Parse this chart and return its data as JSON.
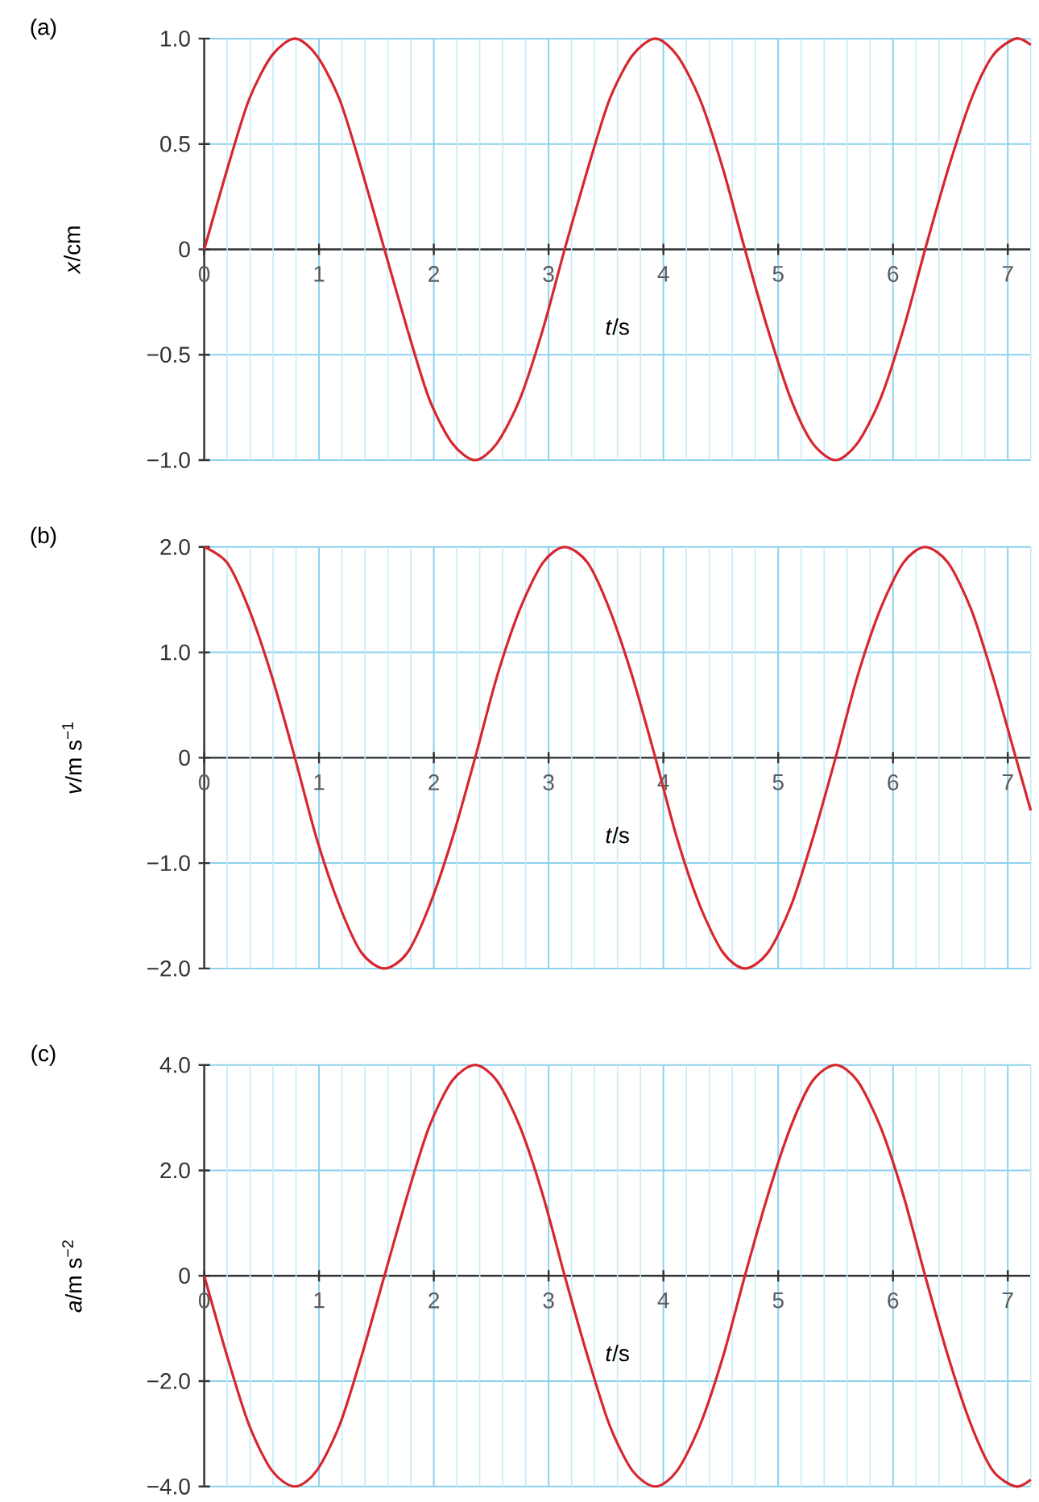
{
  "chart_data": [
    {
      "type": "line",
      "title": "(a)",
      "xlabel": "*t*/s",
      "ylabel": "*x*/cm",
      "xlim": [
        0,
        7.2
      ],
      "ylim": [
        -1.0,
        1.0
      ],
      "xticks": [
        0,
        {
          "value": 0.2,
          "label": null
        },
        {
          "value": 0.4,
          "label": null
        },
        {
          "value": 0.6,
          "label": null
        },
        {
          "value": 0.8,
          "label": null
        },
        1,
        {
          "value": 1.2,
          "label": null
        },
        {
          "value": 1.4,
          "label": null
        },
        {
          "value": 1.6,
          "label": null
        },
        {
          "value": 1.8,
          "label": null
        },
        2,
        {
          "value": 2.2,
          "label": null
        },
        {
          "value": 2.4,
          "label": null
        },
        {
          "value": 2.6,
          "label": null
        },
        {
          "value": 2.8,
          "label": null
        },
        3,
        {
          "value": 3.2,
          "label": null
        },
        {
          "value": 3.4,
          "label": null
        },
        {
          "value": 3.6,
          "label": null
        },
        {
          "value": 3.8,
          "label": null
        },
        4,
        {
          "value": 4.2,
          "label": null
        },
        {
          "value": 4.4,
          "label": null
        },
        {
          "value": 4.6,
          "label": null
        },
        {
          "value": 4.8,
          "label": null
        },
        5,
        {
          "value": 5.2,
          "label": null
        },
        {
          "value": 5.4,
          "label": null
        },
        {
          "value": 5.6,
          "label": null
        },
        {
          "value": 5.8,
          "label": null
        },
        6,
        {
          "value": 6.2,
          "label": null
        },
        {
          "value": 6.4,
          "label": null
        },
        {
          "value": 6.6,
          "label": null
        },
        {
          "value": 6.8,
          "label": null
        },
        7,
        {
          "value": 7.2,
          "label": null
        }
      ],
      "yticks": [
        {
          "value": 1.0,
          "label": "1.0"
        },
        {
          "value": 0.5,
          "label": "0.5"
        },
        {
          "value": 0,
          "label": "0"
        },
        {
          "value": -0.5,
          "label": "−0.5"
        },
        {
          "value": -1.0,
          "label": "−1.0"
        }
      ],
      "grid": true,
      "marker": "none",
      "line_style": "solid",
      "x": [
        0,
        0.2,
        0.39,
        0.59,
        0.79,
        0.98,
        1.18,
        1.37,
        1.57,
        1.77,
        1.96,
        2.16,
        2.36,
        2.55,
        2.75,
        2.95,
        3.14,
        3.34,
        3.53,
        3.73,
        3.93,
        4.12,
        4.32,
        4.52,
        4.71,
        4.91,
        5.11,
        5.3,
        5.5,
        5.69,
        5.89,
        6.09,
        6.28,
        6.48,
        6.68,
        6.87,
        7.07,
        7.2
      ],
      "series": [
        {
          "color": "#d7262e",
          "values": [
            0,
            0.38,
            0.71,
            0.92,
            1,
            0.92,
            0.71,
            0.38,
            0,
            -0.38,
            -0.71,
            -0.92,
            -1,
            -0.92,
            -0.71,
            -0.38,
            0,
            0.38,
            0.71,
            0.92,
            1,
            0.92,
            0.71,
            0.38,
            0,
            -0.38,
            -0.71,
            -0.92,
            -1,
            -0.92,
            -0.71,
            -0.38,
            0,
            0.38,
            0.71,
            0.92,
            1,
            0.97
          ]
        }
      ]
    },
    {
      "type": "line",
      "title": "(b)",
      "xlabel": "*t*/s",
      "ylabel": "*v*/m s$^{−1}$",
      "xlim": [
        0,
        7.2
      ],
      "ylim": [
        -2.0,
        2.0
      ],
      "xticks": [
        0,
        {
          "value": 0.2,
          "label": null
        },
        {
          "value": 0.4,
          "label": null
        },
        {
          "value": 0.6,
          "label": null
        },
        {
          "value": 0.8,
          "label": null
        },
        1,
        {
          "value": 1.2,
          "label": null
        },
        {
          "value": 1.4,
          "label": null
        },
        {
          "value": 1.6,
          "label": null
        },
        {
          "value": 1.8,
          "label": null
        },
        2,
        {
          "value": 2.2,
          "label": null
        },
        {
          "value": 2.4,
          "label": null
        },
        {
          "value": 2.6,
          "label": null
        },
        {
          "value": 2.8,
          "label": null
        },
        3,
        {
          "value": 3.2,
          "label": null
        },
        {
          "value": 3.4,
          "label": null
        },
        {
          "value": 3.6,
          "label": null
        },
        {
          "value": 3.8,
          "label": null
        },
        4,
        {
          "value": 4.2,
          "label": null
        },
        {
          "value": 4.4,
          "label": null
        },
        {
          "value": 4.6,
          "label": null
        },
        {
          "value": 4.8,
          "label": null
        },
        5,
        {
          "value": 5.2,
          "label": null
        },
        {
          "value": 5.4,
          "label": null
        },
        {
          "value": 5.6,
          "label": null
        },
        {
          "value": 5.8,
          "label": null
        },
        6,
        {
          "value": 6.2,
          "label": null
        },
        {
          "value": 6.4,
          "label": null
        },
        {
          "value": 6.6,
          "label": null
        },
        {
          "value": 6.8,
          "label": null
        },
        7,
        {
          "value": 7.2,
          "label": null
        }
      ],
      "yticks": [
        {
          "value": 2.0,
          "label": "2.0"
        },
        {
          "value": 1.0,
          "label": "1.0"
        },
        {
          "value": 0,
          "label": "0"
        },
        {
          "value": -1.0,
          "label": "−1.0"
        },
        {
          "value": -2.0,
          "label": "−2.0"
        }
      ],
      "grid": true,
      "marker": "none",
      "line_style": "solid",
      "x": [
        0,
        0.2,
        0.39,
        0.59,
        0.79,
        0.98,
        1.18,
        1.37,
        1.57,
        1.77,
        1.96,
        2.16,
        2.36,
        2.55,
        2.75,
        2.95,
        3.14,
        3.34,
        3.53,
        3.73,
        3.93,
        4.12,
        4.32,
        4.52,
        4.71,
        4.91,
        5.11,
        5.3,
        5.5,
        5.69,
        5.89,
        6.09,
        6.28,
        6.48,
        6.68,
        6.87,
        7.07,
        7.2
      ],
      "series": [
        {
          "color": "#d7262e",
          "values": [
            2,
            1.85,
            1.41,
            0.77,
            0,
            -0.77,
            -1.41,
            -1.85,
            -2,
            -1.85,
            -1.41,
            -0.77,
            0,
            0.77,
            1.41,
            1.85,
            2,
            1.85,
            1.41,
            0.77,
            0,
            -0.77,
            -1.41,
            -1.85,
            -2,
            -1.85,
            -1.41,
            -0.77,
            0,
            0.77,
            1.41,
            1.85,
            2,
            1.85,
            1.41,
            0.77,
            0,
            -0.5
          ]
        }
      ]
    },
    {
      "type": "line",
      "title": "(c)",
      "xlabel": "*t*/s",
      "ylabel": "*a*/m s$^{−2}$",
      "xlim": [
        0,
        7.2
      ],
      "ylim": [
        -4.0,
        4.0
      ],
      "xticks": [
        0,
        {
          "value": 0.2,
          "label": null
        },
        {
          "value": 0.4,
          "label": null
        },
        {
          "value": 0.6,
          "label": null
        },
        {
          "value": 0.8,
          "label": null
        },
        1,
        {
          "value": 1.2,
          "label": null
        },
        {
          "value": 1.4,
          "label": null
        },
        {
          "value": 1.6,
          "label": null
        },
        {
          "value": 1.8,
          "label": null
        },
        2,
        {
          "value": 2.2,
          "label": null
        },
        {
          "value": 2.4,
          "label": null
        },
        {
          "value": 2.6,
          "label": null
        },
        {
          "value": 2.8,
          "label": null
        },
        3,
        {
          "value": 3.2,
          "label": null
        },
        {
          "value": 3.4,
          "label": null
        },
        {
          "value": 3.6,
          "label": null
        },
        {
          "value": 3.8,
          "label": null
        },
        4,
        {
          "value": 4.2,
          "label": null
        },
        {
          "value": 4.4,
          "label": null
        },
        {
          "value": 4.6,
          "label": null
        },
        {
          "value": 4.8,
          "label": null
        },
        5,
        {
          "value": 5.2,
          "label": null
        },
        {
          "value": 5.4,
          "label": null
        },
        {
          "value": 5.6,
          "label": null
        },
        {
          "value": 5.8,
          "label": null
        },
        6,
        {
          "value": 6.2,
          "label": null
        },
        {
          "value": 6.4,
          "label": null
        },
        {
          "value": 6.6,
          "label": null
        },
        {
          "value": 6.8,
          "label": null
        },
        7,
        {
          "value": 7.2,
          "label": null
        }
      ],
      "yticks": [
        {
          "value": 4.0,
          "label": "4.0"
        },
        {
          "value": 2.0,
          "label": "2.0"
        },
        {
          "value": 0,
          "label": "0"
        },
        {
          "value": -2.0,
          "label": "−2.0"
        },
        {
          "value": -4.0,
          "label": "−4.0"
        }
      ],
      "grid": true,
      "marker": "none",
      "line_style": "solid",
      "x": [
        0,
        0.2,
        0.39,
        0.59,
        0.79,
        0.98,
        1.18,
        1.37,
        1.57,
        1.77,
        1.96,
        2.16,
        2.36,
        2.55,
        2.75,
        2.95,
        3.14,
        3.34,
        3.53,
        3.73,
        3.93,
        4.12,
        4.32,
        4.52,
        4.71,
        4.91,
        5.11,
        5.3,
        5.5,
        5.69,
        5.89,
        6.09,
        6.28,
        6.48,
        6.68,
        6.87,
        7.07,
        7.2
      ],
      "series": [
        {
          "color": "#d7262e",
          "values": [
            0,
            -1.53,
            -2.83,
            -3.7,
            -4,
            -3.7,
            -2.83,
            -1.53,
            0,
            1.53,
            2.83,
            3.7,
            4,
            3.7,
            2.83,
            1.53,
            0,
            -1.53,
            -2.83,
            -3.7,
            -4,
            -3.7,
            -2.83,
            -1.53,
            0,
            1.53,
            2.83,
            3.7,
            4,
            3.7,
            2.83,
            1.53,
            0,
            -1.53,
            -2.83,
            -3.7,
            -4,
            -3.87
          ]
        }
      ]
    }
  ]
}
